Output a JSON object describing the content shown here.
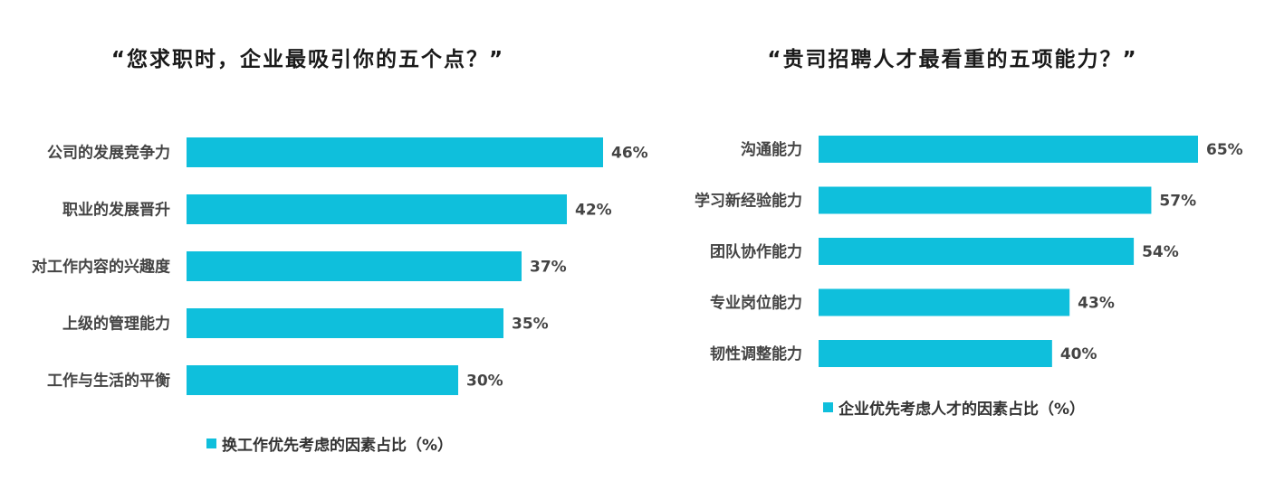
{
  "colors": {
    "bar": "#0fbfdc",
    "text": "#444444"
  },
  "chart_data": [
    {
      "type": "bar",
      "orientation": "horizontal",
      "title": "“您求职时，企业最吸引你的五个点？”",
      "categories": [
        "公司的发展竞争力",
        "职业的发展晋升",
        "对工作内容的兴趣度",
        "上级的管理能力",
        "工作与生活的平衡"
      ],
      "series": [
        {
          "name": "换工作优先考虑的因素占比（%）",
          "values": [
            46,
            42,
            37,
            35,
            30
          ]
        }
      ],
      "value_labels": [
        "46%",
        "42%",
        "37%",
        "35%",
        "30%"
      ],
      "xlim": [
        0,
        50
      ],
      "grid": false,
      "legend_position": "bottom"
    },
    {
      "type": "bar",
      "orientation": "horizontal",
      "title": "“贵司招聘人才最看重的五项能力？”",
      "categories": [
        "沟通能力",
        "学习新经验能力",
        "团队协作能力",
        "专业岗位能力",
        "韧性调整能力"
      ],
      "series": [
        {
          "name": "企业优先考虑人才的因素占比（%）",
          "values": [
            65,
            57,
            54,
            43,
            40
          ]
        }
      ],
      "value_labels": [
        "65%",
        "57%",
        "54%",
        "43%",
        "40%"
      ],
      "xlim": [
        0,
        65
      ],
      "grid": false,
      "legend_position": "bottom"
    }
  ]
}
